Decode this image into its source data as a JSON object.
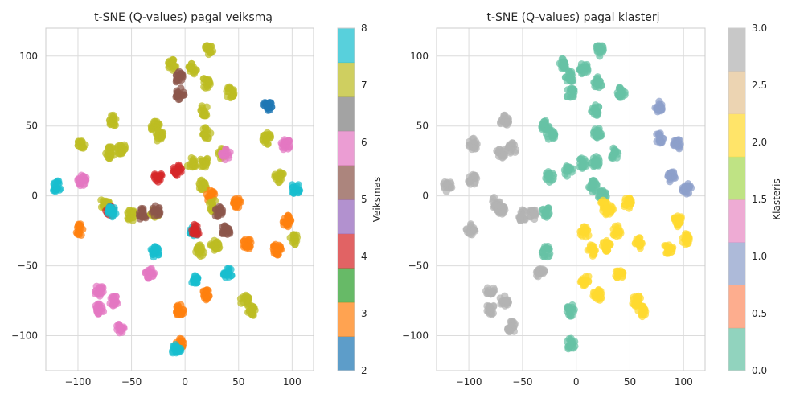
{
  "chart_data": [
    {
      "type": "scatter",
      "title": "t-SNE (Q-values) pagal veiksmą",
      "xlabel": "",
      "ylabel": "",
      "xlim": [
        -130,
        120
      ],
      "ylim": [
        -125,
        120
      ],
      "xticks": [
        -100,
        -50,
        0,
        50,
        100
      ],
      "yticks": [
        -100,
        -50,
        0,
        50,
        100
      ],
      "grid": true,
      "color_by": "Veiksmas",
      "colorbar": {
        "label": "Veiksmas",
        "range": [
          2,
          8
        ],
        "ticks": [
          2,
          3,
          4,
          5,
          6,
          7,
          8
        ],
        "colors": [
          "#1f77b4",
          "#ff7f0e",
          "#2ca02c",
          "#d62728",
          "#9467bd",
          "#8c564b",
          "#e377c2",
          "#7f7f7f",
          "#bcbd22",
          "#17becf"
        ]
      },
      "clusters": [
        {
          "x": -120,
          "y": 7,
          "v": 8
        },
        {
          "x": -96,
          "y": 37,
          "v": 7
        },
        {
          "x": -96,
          "y": 11,
          "v": 6
        },
        {
          "x": -98,
          "y": -24,
          "v": 3
        },
        {
          "x": -80,
          "y": -68,
          "v": 6
        },
        {
          "x": -80,
          "y": -81,
          "v": 6
        },
        {
          "x": -70,
          "y": 31,
          "v": 7
        },
        {
          "x": -67,
          "y": 54,
          "v": 7
        },
        {
          "x": -60,
          "y": 34,
          "v": 7
        },
        {
          "x": -75,
          "y": -5,
          "v": 7
        },
        {
          "x": -70,
          "y": -11,
          "v": 4
        },
        {
          "x": -68,
          "y": -11,
          "v": 8
        },
        {
          "x": -67,
          "y": -75,
          "v": 6
        },
        {
          "x": -60,
          "y": -94,
          "v": 6
        },
        {
          "x": -50,
          "y": -14,
          "v": 7
        },
        {
          "x": -40,
          "y": -13,
          "v": 5
        },
        {
          "x": -33,
          "y": -55,
          "v": 6
        },
        {
          "x": -28,
          "y": -40,
          "v": 8
        },
        {
          "x": -28,
          "y": -12,
          "v": 7
        },
        {
          "x": -27,
          "y": -11,
          "v": 5
        },
        {
          "x": -28,
          "y": 50,
          "v": 7
        },
        {
          "x": -25,
          "y": 14,
          "v": 4
        },
        {
          "x": -24,
          "y": 43,
          "v": 7
        },
        {
          "x": -12,
          "y": 94,
          "v": 7
        },
        {
          "x": -6,
          "y": 85,
          "v": 5
        },
        {
          "x": -5,
          "y": 73,
          "v": 5
        },
        {
          "x": -7,
          "y": 18,
          "v": 4
        },
        {
          "x": -5,
          "y": -82,
          "v": 3
        },
        {
          "x": -5,
          "y": -106,
          "v": 3
        },
        {
          "x": -8,
          "y": -110,
          "v": 8
        },
        {
          "x": 7,
          "y": 91,
          "v": 7
        },
        {
          "x": 6,
          "y": 23,
          "v": 7
        },
        {
          "x": 8,
          "y": -26,
          "v": 8
        },
        {
          "x": 10,
          "y": -24,
          "v": 4
        },
        {
          "x": 8,
          "y": -60,
          "v": 8
        },
        {
          "x": 14,
          "y": -39,
          "v": 7
        },
        {
          "x": 16,
          "y": 7,
          "v": 7
        },
        {
          "x": 18,
          "y": 24,
          "v": 7
        },
        {
          "x": 18,
          "y": 61,
          "v": 7
        },
        {
          "x": 20,
          "y": 81,
          "v": 7
        },
        {
          "x": 20,
          "y": 45,
          "v": 7
        },
        {
          "x": 20,
          "y": -71,
          "v": 3
        },
        {
          "x": 22,
          "y": 104,
          "v": 7
        },
        {
          "x": 24,
          "y": 0,
          "v": 3
        },
        {
          "x": 26,
          "y": -7,
          "v": 7
        },
        {
          "x": 28,
          "y": -36,
          "v": 7
        },
        {
          "x": 31,
          "y": -11,
          "v": 5
        },
        {
          "x": 35,
          "y": 30,
          "v": 7
        },
        {
          "x": 38,
          "y": 30,
          "v": 6
        },
        {
          "x": 38,
          "y": -25,
          "v": 5
        },
        {
          "x": 40,
          "y": -55,
          "v": 8
        },
        {
          "x": 42,
          "y": 74,
          "v": 7
        },
        {
          "x": 48,
          "y": -5,
          "v": 3
        },
        {
          "x": 56,
          "y": -75,
          "v": 7
        },
        {
          "x": 58,
          "y": -34,
          "v": 3
        },
        {
          "x": 62,
          "y": -82,
          "v": 7
        },
        {
          "x": 77,
          "y": 64,
          "v": 2
        },
        {
          "x": 77,
          "y": 41,
          "v": 7
        },
        {
          "x": 86,
          "y": -38,
          "v": 3
        },
        {
          "x": 88,
          "y": 14,
          "v": 7
        },
        {
          "x": 94,
          "y": 37,
          "v": 6
        },
        {
          "x": 95,
          "y": -18,
          "v": 3
        },
        {
          "x": 102,
          "y": -31,
          "v": 7
        },
        {
          "x": 103,
          "y": 5,
          "v": 8
        }
      ]
    },
    {
      "type": "scatter",
      "title": "t-SNE (Q-values) pagal klasterį",
      "xlabel": "",
      "ylabel": "",
      "xlim": [
        -130,
        120
      ],
      "ylim": [
        -125,
        120
      ],
      "xticks": [
        -100,
        -50,
        0,
        50,
        100
      ],
      "yticks": [
        -100,
        -50,
        0,
        50,
        100
      ],
      "grid": true,
      "color_by": "Klasteris",
      "colorbar": {
        "label": "Klasteris",
        "range": [
          0.0,
          3.0
        ],
        "ticks": [
          "0.0",
          "0.5",
          "1.0",
          "1.5",
          "2.0",
          "2.5",
          "3.0"
        ],
        "colors": [
          "#66c2a5",
          "#fc8d62",
          "#8da0cb",
          "#e78ac3",
          "#a6d854",
          "#ffd92f",
          "#e5c494",
          "#b3b3b3"
        ]
      },
      "clusters": [
        {
          "x": -120,
          "y": 7,
          "v": 3
        },
        {
          "x": -96,
          "y": 37,
          "v": 3
        },
        {
          "x": -96,
          "y": 11,
          "v": 3
        },
        {
          "x": -98,
          "y": -24,
          "v": 3
        },
        {
          "x": -80,
          "y": -68,
          "v": 3
        },
        {
          "x": -80,
          "y": -81,
          "v": 3
        },
        {
          "x": -70,
          "y": 31,
          "v": 3
        },
        {
          "x": -67,
          "y": 54,
          "v": 3
        },
        {
          "x": -60,
          "y": 34,
          "v": 3
        },
        {
          "x": -75,
          "y": -5,
          "v": 3
        },
        {
          "x": -70,
          "y": -11,
          "v": 3
        },
        {
          "x": -67,
          "y": -75,
          "v": 3
        },
        {
          "x": -60,
          "y": -94,
          "v": 3
        },
        {
          "x": -50,
          "y": -14,
          "v": 3
        },
        {
          "x": -40,
          "y": -13,
          "v": 3
        },
        {
          "x": -33,
          "y": -55,
          "v": 3
        },
        {
          "x": -28,
          "y": -40,
          "v": 0
        },
        {
          "x": -28,
          "y": -12,
          "v": 0
        },
        {
          "x": -28,
          "y": 50,
          "v": 0
        },
        {
          "x": -25,
          "y": 14,
          "v": 0
        },
        {
          "x": -24,
          "y": 43,
          "v": 0
        },
        {
          "x": -12,
          "y": 94,
          "v": 0
        },
        {
          "x": -6,
          "y": 85,
          "v": 0
        },
        {
          "x": -5,
          "y": 73,
          "v": 0
        },
        {
          "x": -7,
          "y": 18,
          "v": 0
        },
        {
          "x": -5,
          "y": -82,
          "v": 0
        },
        {
          "x": -5,
          "y": -106,
          "v": 0
        },
        {
          "x": 7,
          "y": 91,
          "v": 0
        },
        {
          "x": 6,
          "y": 23,
          "v": 0
        },
        {
          "x": 8,
          "y": -26,
          "v": 2
        },
        {
          "x": 8,
          "y": -60,
          "v": 2
        },
        {
          "x": 14,
          "y": -39,
          "v": 2
        },
        {
          "x": 16,
          "y": 7,
          "v": 0
        },
        {
          "x": 18,
          "y": 24,
          "v": 0
        },
        {
          "x": 18,
          "y": 61,
          "v": 0
        },
        {
          "x": 20,
          "y": 81,
          "v": 0
        },
        {
          "x": 20,
          "y": 45,
          "v": 0
        },
        {
          "x": 20,
          "y": -71,
          "v": 2
        },
        {
          "x": 22,
          "y": 104,
          "v": 0
        },
        {
          "x": 24,
          "y": 0,
          "v": 0
        },
        {
          "x": 26,
          "y": -7,
          "v": 2
        },
        {
          "x": 28,
          "y": -36,
          "v": 2
        },
        {
          "x": 31,
          "y": -11,
          "v": 2
        },
        {
          "x": 35,
          "y": 30,
          "v": 0
        },
        {
          "x": 38,
          "y": -25,
          "v": 2
        },
        {
          "x": 40,
          "y": -55,
          "v": 2
        },
        {
          "x": 42,
          "y": 74,
          "v": 0
        },
        {
          "x": 48,
          "y": -5,
          "v": 2
        },
        {
          "x": 56,
          "y": -75,
          "v": 2
        },
        {
          "x": 58,
          "y": -34,
          "v": 2
        },
        {
          "x": 62,
          "y": -82,
          "v": 2
        },
        {
          "x": 77,
          "y": 64,
          "v": 1
        },
        {
          "x": 77,
          "y": 41,
          "v": 1
        },
        {
          "x": 86,
          "y": -38,
          "v": 2
        },
        {
          "x": 88,
          "y": 14,
          "v": 1
        },
        {
          "x": 94,
          "y": 37,
          "v": 1
        },
        {
          "x": 95,
          "y": -18,
          "v": 2
        },
        {
          "x": 102,
          "y": -31,
          "v": 2
        },
        {
          "x": 103,
          "y": 5,
          "v": 1
        }
      ]
    }
  ]
}
